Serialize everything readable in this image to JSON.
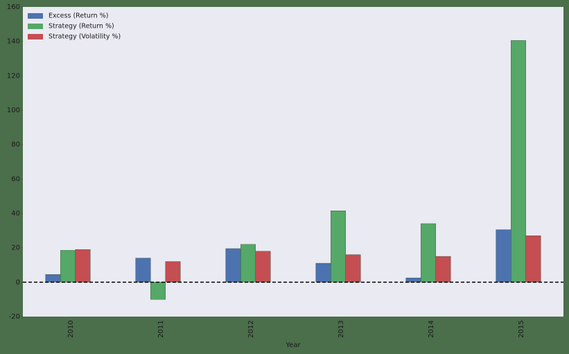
{
  "chart_data": {
    "type": "bar",
    "x_label": "Year",
    "categories": [
      "2010",
      "2011",
      "2012",
      "2013",
      "2014",
      "2015"
    ],
    "series": [
      {
        "name": "Excess (Return %)",
        "color": "#4c72b0",
        "values": [
          4.5,
          14,
          19.5,
          11,
          2.5,
          30.5
        ]
      },
      {
        "name": "Strategy (Return %)",
        "color": "#55a868",
        "values": [
          18.5,
          -10,
          22,
          41.5,
          34,
          140.5
        ]
      },
      {
        "name": "Strategy (Volatility %)",
        "color": "#c44e52",
        "values": [
          19,
          12,
          18,
          16,
          15,
          27
        ]
      }
    ],
    "ylim": [
      -20,
      160
    ],
    "yticks": [
      -20,
      0,
      20,
      40,
      60,
      80,
      100,
      120,
      140,
      160
    ],
    "hline": 0,
    "grid": false,
    "legend": "upper left"
  }
}
